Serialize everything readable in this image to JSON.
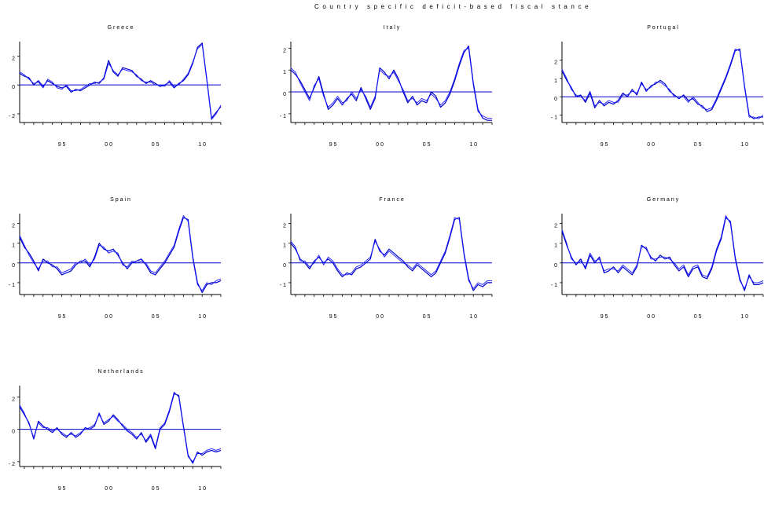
{
  "title": "Country specific deficit-based fiscal stance",
  "chart_data": [
    {
      "type": "line",
      "title": "Greece",
      "x_ticks": [
        "95",
        "00",
        "05",
        "10"
      ],
      "ylim": [
        -2.6,
        3.0
      ],
      "y_ticks": [
        -2,
        0,
        2
      ],
      "y_tick_labels": [
        "- 2",
        "0",
        "2"
      ],
      "reference_line": 0.0,
      "x": [
        1990.5,
        1991,
        1991.5,
        1992,
        1992.5,
        1993,
        1993.5,
        1994,
        1994.5,
        1995,
        1995.5,
        1996,
        1996.5,
        1997,
        1997.5,
        1998,
        1998.5,
        1999,
        1999.5,
        2000,
        2000.5,
        2001,
        2001.5,
        2002,
        2002.5,
        2003,
        2003.5,
        2004,
        2004.5,
        2005,
        2005.5,
        2006,
        2006.5,
        2007,
        2007.5,
        2008,
        2008.5,
        2009,
        2009.5,
        2010,
        2010.5,
        2011,
        2011.5,
        2012
      ],
      "series": [
        {
          "values": [
            0.8,
            0.6,
            0.5,
            0.0,
            0.3,
            -0.1,
            0.3,
            0.1,
            -0.1,
            -0.2,
            -0.1,
            -0.5,
            -0.3,
            -0.4,
            -0.2,
            0.0,
            0.2,
            0.1,
            0.5,
            1.7,
            0.9,
            0.6,
            1.2,
            1.1,
            1.0,
            0.6,
            0.4,
            0.1,
            0.3,
            0.1,
            -0.1,
            0.0,
            0.2,
            -0.2,
            0.1,
            0.3,
            0.7,
            1.5,
            2.6,
            2.9,
            0.4,
            -2.3,
            -1.9,
            -1.5
          ]
        },
        {
          "values": [
            0.9,
            0.7,
            0.4,
            0.1,
            0.2,
            -0.2,
            0.4,
            0.2,
            -0.2,
            -0.3,
            0.0,
            -0.4,
            -0.4,
            -0.3,
            -0.1,
            0.1,
            0.1,
            0.2,
            0.4,
            1.5,
            1.0,
            0.7,
            1.1,
            1.0,
            0.9,
            0.7,
            0.3,
            0.2,
            0.2,
            0.0,
            0.0,
            -0.1,
            0.3,
            -0.1,
            0.0,
            0.4,
            0.8,
            1.6,
            2.5,
            2.8,
            0.3,
            -2.4,
            -2.0,
            -1.4
          ]
        }
      ]
    },
    {
      "type": "line",
      "title": "Italy",
      "x_ticks": [
        "95",
        "00",
        "05",
        "10"
      ],
      "ylim": [
        -1.4,
        2.3
      ],
      "y_ticks": [
        -1,
        0,
        1,
        2
      ],
      "y_tick_labels": [
        "- 1",
        "0",
        "1",
        "2"
      ],
      "reference_line": 0.0,
      "x": [
        1990.5,
        1991,
        1991.5,
        1992,
        1992.5,
        1993,
        1993.5,
        1994,
        1994.5,
        1995,
        1995.5,
        1996,
        1996.5,
        1997,
        1997.5,
        1998,
        1998.5,
        1999,
        1999.5,
        2000,
        2000.5,
        2001,
        2001.5,
        2002,
        2002.5,
        2003,
        2003.5,
        2004,
        2004.5,
        2005,
        2005.5,
        2006,
        2006.5,
        2007,
        2007.5,
        2008,
        2008.5,
        2009,
        2009.5,
        2010,
        2010.5,
        2011,
        2011.5,
        2012
      ],
      "series": [
        {
          "values": [
            1.0,
            0.8,
            0.5,
            0.1,
            -0.3,
            0.2,
            0.7,
            -0.1,
            -0.8,
            -0.6,
            -0.3,
            -0.6,
            -0.3,
            -0.1,
            -0.4,
            0.2,
            -0.3,
            -0.8,
            -0.3,
            1.1,
            0.9,
            0.6,
            1.0,
            0.6,
            0.0,
            -0.5,
            -0.2,
            -0.6,
            -0.4,
            -0.5,
            0.0,
            -0.2,
            -0.7,
            -0.5,
            -0.1,
            0.5,
            1.2,
            1.8,
            2.1,
            0.4,
            -0.8,
            -1.2,
            -1.3,
            -1.3
          ]
        },
        {
          "values": [
            1.1,
            0.9,
            0.4,
            0.0,
            -0.4,
            0.3,
            0.6,
            -0.2,
            -0.7,
            -0.5,
            -0.2,
            -0.5,
            -0.4,
            0.0,
            -0.3,
            0.1,
            -0.2,
            -0.7,
            -0.2,
            1.0,
            0.8,
            0.7,
            0.9,
            0.5,
            0.1,
            -0.4,
            -0.3,
            -0.5,
            -0.3,
            -0.4,
            -0.1,
            -0.3,
            -0.6,
            -0.4,
            0.0,
            0.6,
            1.3,
            1.9,
            2.0,
            0.3,
            -0.9,
            -1.1,
            -1.2,
            -1.2
          ]
        }
      ]
    },
    {
      "type": "line",
      "title": "Portugal",
      "x_ticks": [
        "95",
        "00",
        "05",
        "10"
      ],
      "ylim": [
        -1.4,
        3.0
      ],
      "y_ticks": [
        -1,
        0,
        1,
        2
      ],
      "y_tick_labels": [
        "- 1",
        "0",
        "1",
        "2"
      ],
      "reference_line": 0.0,
      "x": [
        1990.5,
        1991,
        1991.5,
        1992,
        1992.5,
        1993,
        1993.5,
        1994,
        1994.5,
        1995,
        1995.5,
        1996,
        1996.5,
        1997,
        1997.5,
        1998,
        1998.5,
        1999,
        1999.5,
        2000,
        2000.5,
        2001,
        2001.5,
        2002,
        2002.5,
        2003,
        2003.5,
        2004,
        2004.5,
        2005,
        2005.5,
        2006,
        2006.5,
        2007,
        2007.5,
        2008,
        2008.5,
        2009,
        2009.5,
        2010,
        2010.5,
        2011,
        2011.5,
        2012
      ],
      "series": [
        {
          "values": [
            1.4,
            0.9,
            0.5,
            0.0,
            0.1,
            -0.3,
            0.2,
            -0.6,
            -0.2,
            -0.5,
            -0.3,
            -0.4,
            -0.2,
            0.2,
            0.0,
            0.4,
            0.1,
            0.8,
            0.3,
            0.6,
            0.7,
            0.9,
            0.7,
            0.3,
            0.1,
            -0.1,
            0.1,
            -0.2,
            -0.1,
            -0.4,
            -0.5,
            -0.8,
            -0.7,
            -0.2,
            0.4,
            1.0,
            1.7,
            2.5,
            2.6,
            0.6,
            -1.0,
            -1.2,
            -1.1,
            -1.1
          ]
        },
        {
          "values": [
            1.5,
            1.0,
            0.4,
            0.1,
            0.0,
            -0.2,
            0.3,
            -0.5,
            -0.3,
            -0.4,
            -0.2,
            -0.3,
            -0.3,
            0.1,
            0.1,
            0.3,
            0.2,
            0.7,
            0.4,
            0.5,
            0.8,
            0.8,
            0.6,
            0.4,
            0.0,
            0.0,
            0.0,
            -0.3,
            0.0,
            -0.3,
            -0.6,
            -0.7,
            -0.6,
            -0.1,
            0.5,
            1.1,
            1.8,
            2.6,
            2.5,
            0.5,
            -1.1,
            -1.1,
            -1.2,
            -1.0
          ]
        }
      ]
    },
    {
      "type": "line",
      "title": "Spain",
      "x_ticks": [
        "95",
        "00",
        "05",
        "10"
      ],
      "ylim": [
        -1.6,
        2.5
      ],
      "y_ticks": [
        -1,
        0,
        1,
        2
      ],
      "y_tick_labels": [
        "- 1",
        "0",
        "1",
        "2"
      ],
      "reference_line": 0.0,
      "x": [
        1990.5,
        1991,
        1991.5,
        1992,
        1992.5,
        1993,
        1993.5,
        1994,
        1994.5,
        1995,
        1995.5,
        1996,
        1996.5,
        1997,
        1997.5,
        1998,
        1998.5,
        1999,
        1999.5,
        2000,
        2000.5,
        2001,
        2001.5,
        2002,
        2002.5,
        2003,
        2003.5,
        2004,
        2004.5,
        2005,
        2005.5,
        2006,
        2006.5,
        2007,
        2007.5,
        2008,
        2008.5,
        2009,
        2009.5,
        2010,
        2010.5,
        2011,
        2011.5,
        2012
      ],
      "series": [
        {
          "values": [
            1.3,
            0.8,
            0.5,
            0.1,
            -0.4,
            0.2,
            0.0,
            -0.1,
            -0.3,
            -0.6,
            -0.5,
            -0.4,
            -0.1,
            0.1,
            0.1,
            -0.2,
            0.3,
            1.0,
            0.7,
            0.6,
            0.7,
            0.4,
            0.0,
            -0.3,
            0.0,
            0.1,
            0.2,
            -0.1,
            -0.5,
            -0.6,
            -0.3,
            0.0,
            0.4,
            0.8,
            1.6,
            2.3,
            2.2,
            0.3,
            -1.0,
            -1.5,
            -1.1,
            -1.0,
            -1.0,
            -0.9
          ]
        },
        {
          "values": [
            1.4,
            0.9,
            0.4,
            0.0,
            -0.3,
            0.1,
            0.1,
            -0.2,
            -0.2,
            -0.5,
            -0.4,
            -0.3,
            0.0,
            0.0,
            0.2,
            -0.1,
            0.2,
            0.9,
            0.8,
            0.5,
            0.6,
            0.5,
            -0.1,
            -0.2,
            0.1,
            0.0,
            0.1,
            0.0,
            -0.4,
            -0.5,
            -0.2,
            0.1,
            0.5,
            0.9,
            1.7,
            2.4,
            2.1,
            0.2,
            -1.1,
            -1.4,
            -1.0,
            -1.1,
            -0.9,
            -0.8
          ]
        }
      ]
    },
    {
      "type": "line",
      "title": "France",
      "x_ticks": [
        "95",
        "00",
        "05",
        "10"
      ],
      "ylim": [
        -1.6,
        2.5
      ],
      "y_ticks": [
        -1,
        0,
        1,
        2
      ],
      "y_tick_labels": [
        "- 1",
        "0",
        "1",
        "2"
      ],
      "reference_line": 0.0,
      "x": [
        1990.5,
        1991,
        1991.5,
        1992,
        1992.5,
        1993,
        1993.5,
        1994,
        1994.5,
        1995,
        1995.5,
        1996,
        1996.5,
        1997,
        1997.5,
        1998,
        1998.5,
        1999,
        1999.5,
        2000,
        2000.5,
        2001,
        2001.5,
        2002,
        2002.5,
        2003,
        2003.5,
        2004,
        2004.5,
        2005,
        2005.5,
        2006,
        2006.5,
        2007,
        2007.5,
        2008,
        2008.5,
        2009,
        2009.5,
        2010,
        2010.5,
        2011,
        2011.5,
        2012
      ],
      "series": [
        {
          "values": [
            1.0,
            0.7,
            0.2,
            0.0,
            -0.3,
            0.1,
            0.3,
            0.0,
            0.2,
            0.0,
            -0.4,
            -0.7,
            -0.5,
            -0.6,
            -0.3,
            -0.2,
            0.0,
            0.2,
            1.2,
            0.6,
            0.4,
            0.7,
            0.5,
            0.3,
            0.1,
            -0.2,
            -0.4,
            -0.1,
            -0.3,
            -0.5,
            -0.7,
            -0.5,
            0.0,
            0.5,
            1.3,
            2.2,
            2.3,
            0.5,
            -0.8,
            -1.4,
            -1.1,
            -1.2,
            -1.0,
            -1.0
          ]
        },
        {
          "values": [
            1.1,
            0.8,
            0.1,
            0.1,
            -0.2,
            0.0,
            0.4,
            -0.1,
            0.3,
            0.1,
            -0.3,
            -0.6,
            -0.6,
            -0.5,
            -0.2,
            -0.1,
            0.1,
            0.3,
            1.1,
            0.7,
            0.3,
            0.6,
            0.4,
            0.2,
            0.0,
            -0.1,
            -0.3,
            0.0,
            -0.2,
            -0.4,
            -0.6,
            -0.4,
            0.1,
            0.6,
            1.4,
            2.3,
            2.2,
            0.4,
            -0.9,
            -1.3,
            -1.0,
            -1.1,
            -0.9,
            -0.9
          ]
        }
      ]
    },
    {
      "type": "line",
      "title": "Germany",
      "x_ticks": [
        "95",
        "00",
        "05",
        "10"
      ],
      "ylim": [
        -1.6,
        2.5
      ],
      "y_ticks": [
        -1,
        0,
        1,
        2
      ],
      "y_tick_labels": [
        "- 1",
        "0",
        "1",
        "2"
      ],
      "reference_line": 0.0,
      "x": [
        1990.5,
        1991,
        1991.5,
        1992,
        1992.5,
        1993,
        1993.5,
        1994,
        1994.5,
        1995,
        1995.5,
        1996,
        1996.5,
        1997,
        1997.5,
        1998,
        1998.5,
        1999,
        1999.5,
        2000,
        2000.5,
        2001,
        2001.5,
        2002,
        2002.5,
        2003,
        2003.5,
        2004,
        2004.5,
        2005,
        2005.5,
        2006,
        2006.5,
        2007,
        2007.5,
        2008,
        2008.5,
        2009,
        2009.5,
        2010,
        2010.5,
        2011,
        2011.5,
        2012
      ],
      "series": [
        {
          "values": [
            1.6,
            0.9,
            0.3,
            -0.1,
            0.2,
            -0.3,
            0.4,
            0.0,
            0.3,
            -0.5,
            -0.4,
            -0.2,
            -0.5,
            -0.2,
            -0.4,
            -0.6,
            -0.2,
            0.9,
            0.7,
            0.3,
            0.1,
            0.4,
            0.2,
            0.3,
            -0.1,
            -0.4,
            -0.2,
            -0.7,
            -0.3,
            -0.2,
            -0.7,
            -0.8,
            -0.3,
            0.6,
            1.2,
            2.3,
            2.1,
            0.3,
            -0.8,
            -1.4,
            -0.6,
            -1.1,
            -1.1,
            -1.0
          ]
        },
        {
          "values": [
            1.7,
            1.0,
            0.2,
            0.0,
            0.1,
            -0.2,
            0.5,
            0.1,
            0.2,
            -0.4,
            -0.3,
            -0.3,
            -0.4,
            -0.1,
            -0.3,
            -0.5,
            -0.1,
            0.8,
            0.8,
            0.2,
            0.2,
            0.3,
            0.3,
            0.2,
            0.0,
            -0.3,
            -0.1,
            -0.6,
            -0.2,
            -0.1,
            -0.6,
            -0.7,
            -0.2,
            0.7,
            1.3,
            2.4,
            2.0,
            0.2,
            -0.9,
            -1.3,
            -0.7,
            -1.0,
            -1.0,
            -0.9
          ]
        }
      ]
    },
    {
      "type": "line",
      "title": "Netherlands",
      "x_ticks": [
        "95",
        "00",
        "05",
        "10"
      ],
      "ylim": [
        -2.3,
        2.7
      ],
      "y_ticks": [
        -2,
        0,
        2
      ],
      "y_tick_labels": [
        "- 2",
        "0",
        "2"
      ],
      "reference_line": 0.0,
      "x": [
        1990.5,
        1991,
        1991.5,
        1992,
        1992.5,
        1993,
        1993.5,
        1994,
        1994.5,
        1995,
        1995.5,
        1996,
        1996.5,
        1997,
        1997.5,
        1998,
        1998.5,
        1999,
        1999.5,
        2000,
        2000.5,
        2001,
        2001.5,
        2002,
        2002.5,
        2003,
        2003.5,
        2004,
        2004.5,
        2005,
        2005.5,
        2006,
        2006.5,
        2007,
        2007.5,
        2008,
        2008.5,
        2009,
        2009.5,
        2010,
        2010.5,
        2011,
        2011.5,
        2012
      ],
      "series": [
        {
          "values": [
            1.4,
            0.9,
            0.4,
            -0.6,
            0.5,
            0.2,
            0.0,
            -0.2,
            0.1,
            -0.3,
            -0.5,
            -0.2,
            -0.5,
            -0.3,
            0.1,
            0.0,
            0.2,
            1.0,
            0.3,
            0.5,
            0.9,
            0.6,
            0.2,
            -0.1,
            -0.3,
            -0.6,
            -0.2,
            -0.8,
            -0.4,
            -1.2,
            0.0,
            0.3,
            1.1,
            2.2,
            2.1,
            0.2,
            -1.6,
            -2.1,
            -1.4,
            -1.6,
            -1.4,
            -1.3,
            -1.4,
            -1.3
          ]
        },
        {
          "values": [
            1.5,
            1.0,
            0.3,
            -0.5,
            0.4,
            0.1,
            0.1,
            -0.1,
            0.0,
            -0.2,
            -0.4,
            -0.3,
            -0.4,
            -0.2,
            0.0,
            0.1,
            0.3,
            0.9,
            0.4,
            0.6,
            0.8,
            0.5,
            0.3,
            0.0,
            -0.2,
            -0.5,
            -0.3,
            -0.7,
            -0.3,
            -1.1,
            0.1,
            0.4,
            1.2,
            2.3,
            2.0,
            0.1,
            -1.7,
            -2.0,
            -1.5,
            -1.5,
            -1.3,
            -1.2,
            -1.3,
            -1.2
          ]
        }
      ]
    }
  ]
}
